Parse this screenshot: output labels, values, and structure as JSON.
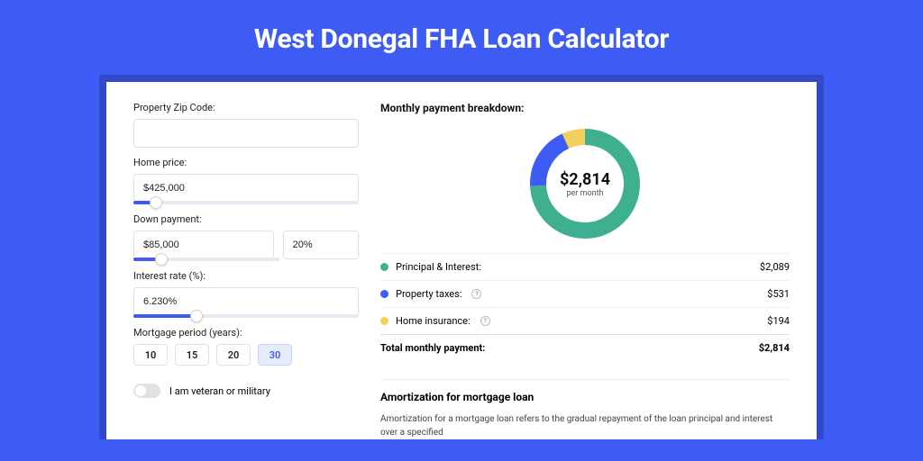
{
  "page": {
    "title": "West Donegal FHA Loan Calculator"
  },
  "form": {
    "zip": {
      "label": "Property Zip Code:",
      "value": ""
    },
    "price": {
      "label": "Home price:",
      "value": "$425,000",
      "slider_pct": 10
    },
    "down": {
      "label": "Down payment:",
      "value": "$85,000",
      "pct_value": "20%",
      "slider_pct": 19
    },
    "rate": {
      "label": "Interest rate (%):",
      "value": "6.230%",
      "slider_pct": 28
    },
    "term": {
      "label": "Mortgage period (years):",
      "options": [
        "10",
        "15",
        "20",
        "30"
      ],
      "selected": "30"
    },
    "veteran": {
      "label": "I am veteran or military",
      "on": false
    }
  },
  "breakdown": {
    "title": "Monthly payment breakdown:",
    "chart": {
      "type": "donut",
      "segments": [
        {
          "key": "principal_interest",
          "label": "Principal & Interest:",
          "value": "$2,089",
          "color": "#3fb08f",
          "frac": 0.742
        },
        {
          "key": "property_taxes",
          "label": "Property taxes:",
          "value": "$531",
          "color": "#3e5cf4",
          "frac": 0.189,
          "info": true
        },
        {
          "key": "home_insurance",
          "label": "Home insurance:",
          "value": "$194",
          "color": "#f3cf5b",
          "frac": 0.069,
          "info": true
        }
      ],
      "center_value": "$2,814",
      "center_sub": "per month",
      "stroke_width": 18,
      "radius": 52,
      "bg": "#ffffff"
    },
    "total": {
      "label": "Total monthly payment:",
      "value": "$2,814"
    }
  },
  "amort": {
    "title": "Amortization for mortgage loan",
    "body": "Amortization for a mortgage loan refers to the gradual repayment of the loan principal and interest over a specified"
  }
}
